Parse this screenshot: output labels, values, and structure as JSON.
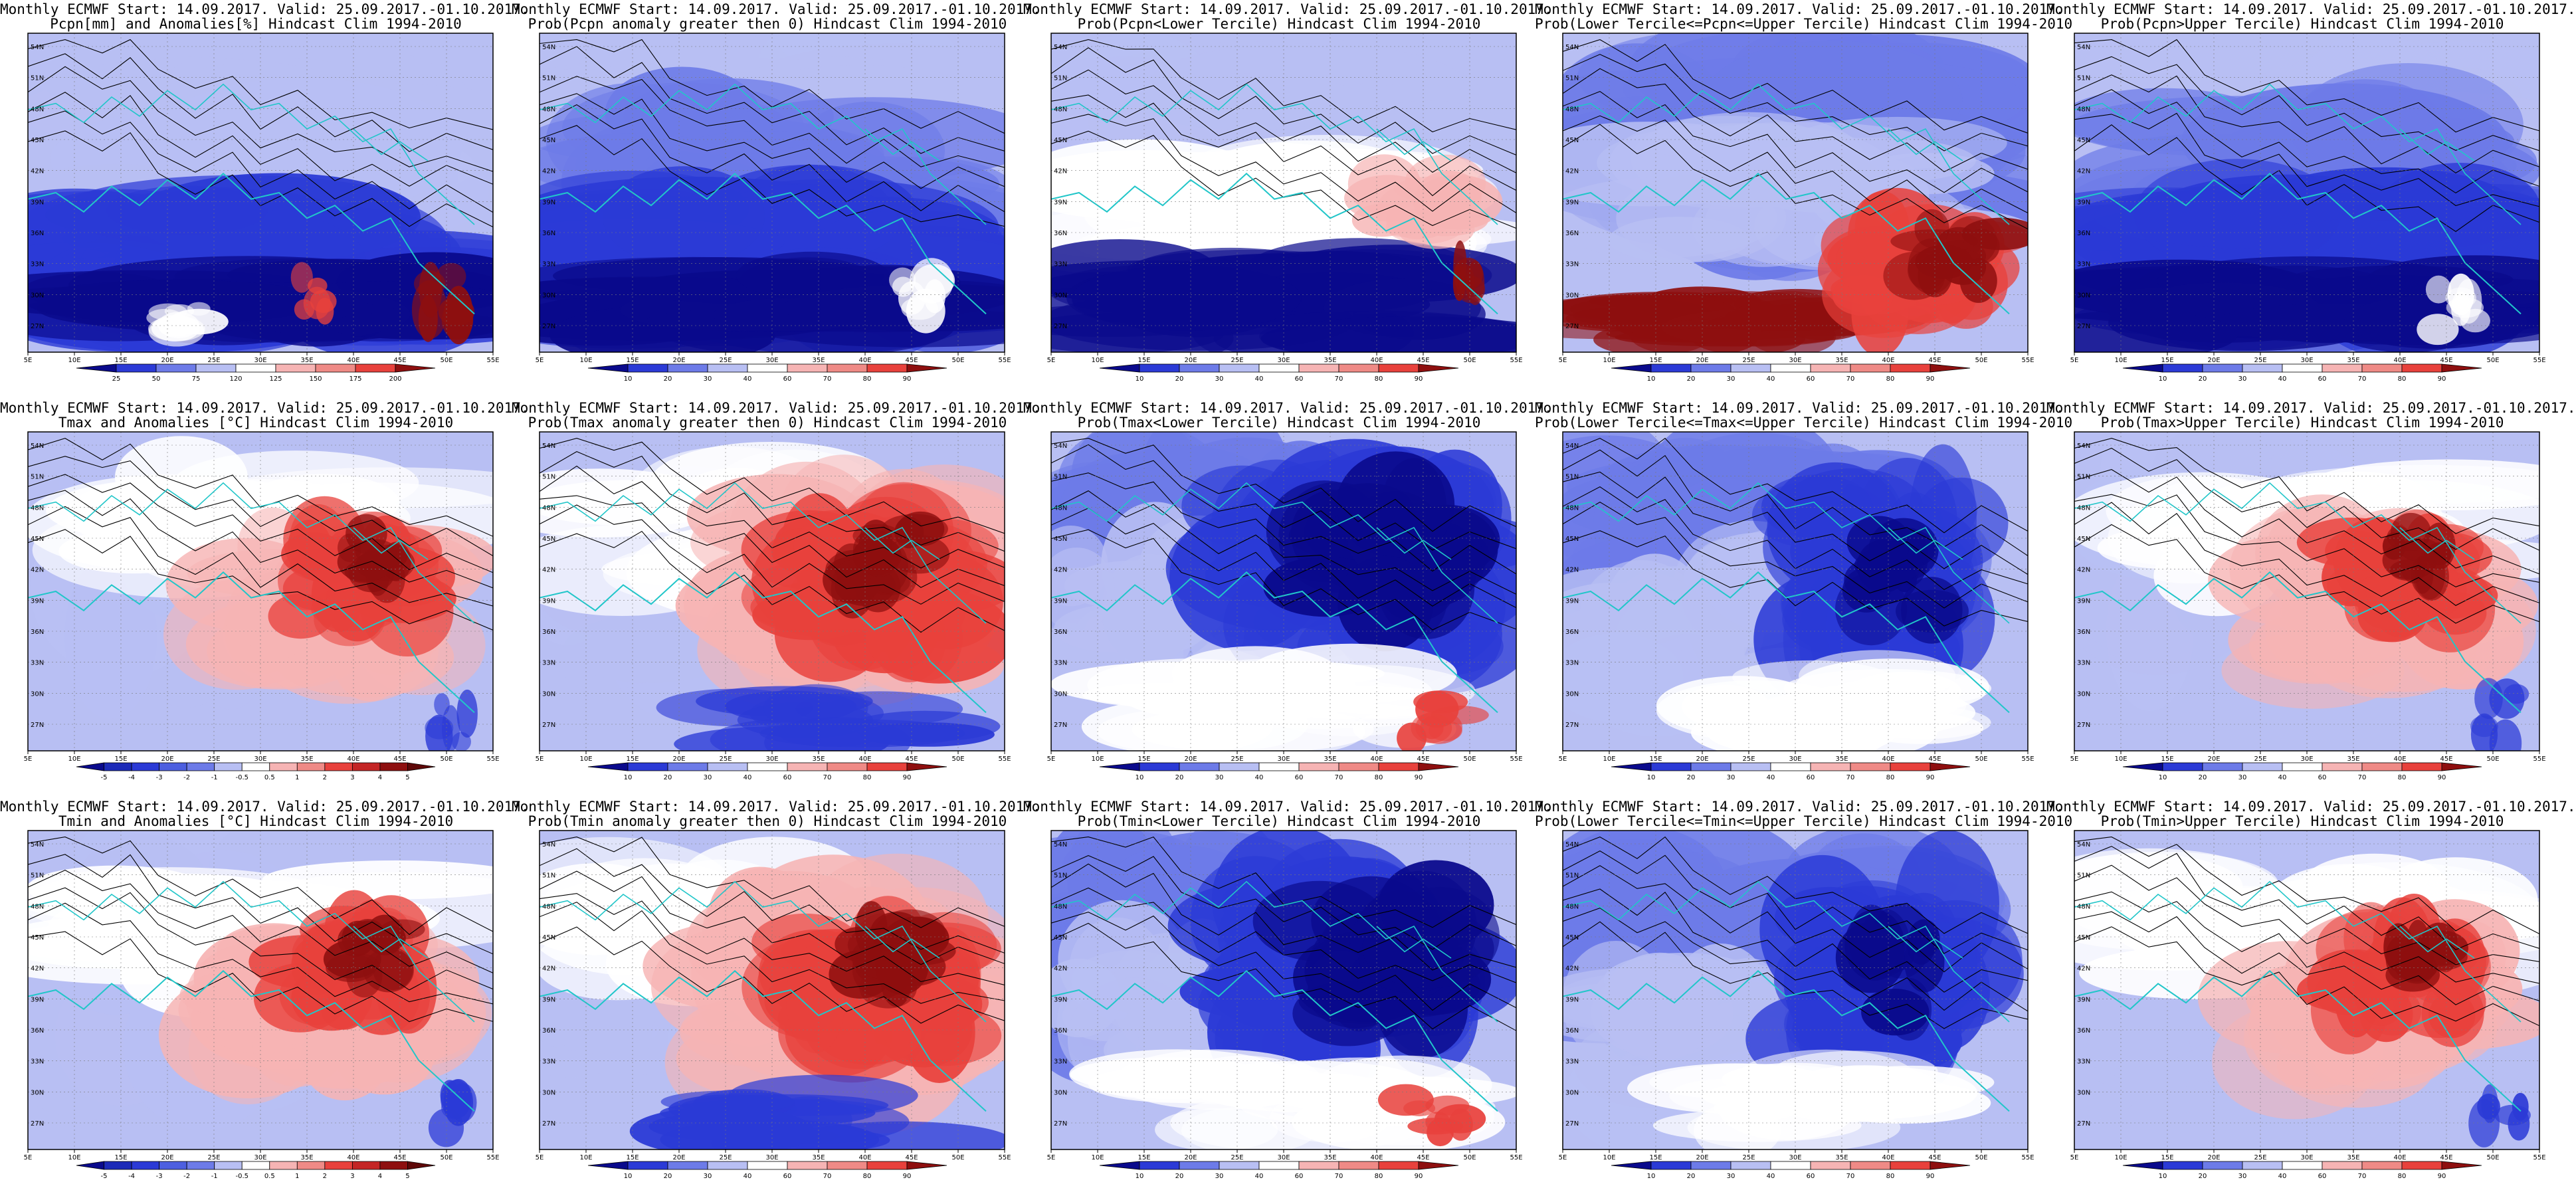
{
  "figure": {
    "title_line1": "Monthly ECMWF Start: 14.09.2017. Valid: 25.09.2017.-01.10.2017.",
    "lat_labels": [
      "54N",
      "51N",
      "48N",
      "45N",
      "42N",
      "39N",
      "36N",
      "33N",
      "30N",
      "27N"
    ],
    "lon_labels": [
      "5E",
      "10E",
      "15E",
      "20E",
      "25E",
      "30E",
      "35E",
      "40E",
      "45E",
      "50E",
      "55E"
    ],
    "colors": {
      "dark_blue": "#0a0a8c",
      "blue": "#2b3ad6",
      "mid_blue": "#6d7be8",
      "light_blue": "#b8bff3",
      "white": "#ffffff",
      "light_red": "#f6b4b4",
      "red": "#e8413c",
      "dark_red": "#8e0f0f",
      "coast": "#21c6c9",
      "contour": "#000000"
    },
    "colorbars": {
      "pcpn": [
        "25",
        "50",
        "75",
        "120",
        "125",
        "150",
        "175",
        "200"
      ],
      "prob": [
        "10",
        "20",
        "30",
        "40",
        "60",
        "70",
        "80",
        "90"
      ],
      "anom": [
        "-5",
        "-4",
        "-3",
        "-2",
        "-1",
        "-0.5",
        "0.5",
        "1",
        "2",
        "3",
        "4",
        "5"
      ]
    },
    "panels": [
      {
        "subtitle": "Pcpn[mm] and Anomalies[%] Hindcast Clim 1994-2010",
        "cb": "pcpn",
        "scheme": "precip_anom"
      },
      {
        "subtitle": "Prob(Pcpn anomaly greater then 0) Hindcast Clim 1994-2010",
        "cb": "prob",
        "scheme": "blue_heavy"
      },
      {
        "subtitle": "Prob(Pcpn<Lower Tercile) Hindcast Clim 1994-2010",
        "cb": "prob",
        "scheme": "lower_pcpn"
      },
      {
        "subtitle": "Prob(Lower Tercile<=Pcpn<=Upper Tercile) Hindcast Clim 1994-2010",
        "cb": "prob",
        "scheme": "middle_pcpn"
      },
      {
        "subtitle": "Prob(Pcpn>Upper Tercile) Hindcast Clim 1994-2010",
        "cb": "prob",
        "scheme": "blue_heavy"
      },
      {
        "subtitle": "Tmax and Anomalies [°C] Hindcast Clim 1994-2010",
        "cb": "anom",
        "scheme": "warm_east"
      },
      {
        "subtitle": "Prob(Tmax anomaly greater then 0) Hindcast Clim 1994-2010",
        "cb": "prob",
        "scheme": "warm_east_strong"
      },
      {
        "subtitle": "Prob(Tmax<Lower Tercile) Hindcast Clim 1994-2010",
        "cb": "prob",
        "scheme": "cold_east"
      },
      {
        "subtitle": "Prob(Lower Tercile<=Tmax<=Upper Tercile) Hindcast Clim 1994-2010",
        "cb": "prob",
        "scheme": "middle_t"
      },
      {
        "subtitle": "Prob(Tmax>Upper Tercile) Hindcast Clim 1994-2010",
        "cb": "prob",
        "scheme": "warm_east"
      },
      {
        "subtitle": "Tmin and Anomalies [°C] Hindcast Clim 1994-2010",
        "cb": "anom",
        "scheme": "warm_east"
      },
      {
        "subtitle": "Prob(Tmin anomaly greater then 0) Hindcast Clim 1994-2010",
        "cb": "prob",
        "scheme": "warm_east_strong"
      },
      {
        "subtitle": "Prob(Tmin<Lower Tercile) Hindcast Clim 1994-2010",
        "cb": "prob",
        "scheme": "cold_east"
      },
      {
        "subtitle": "Prob(Lower Tercile<=Tmin<=Upper Tercile) Hindcast Clim 1994-2010",
        "cb": "prob",
        "scheme": "middle_t"
      },
      {
        "subtitle": "Prob(Tmin>Upper Tercile) Hindcast Clim 1994-2010",
        "cb": "prob",
        "scheme": "warm_east"
      }
    ]
  }
}
